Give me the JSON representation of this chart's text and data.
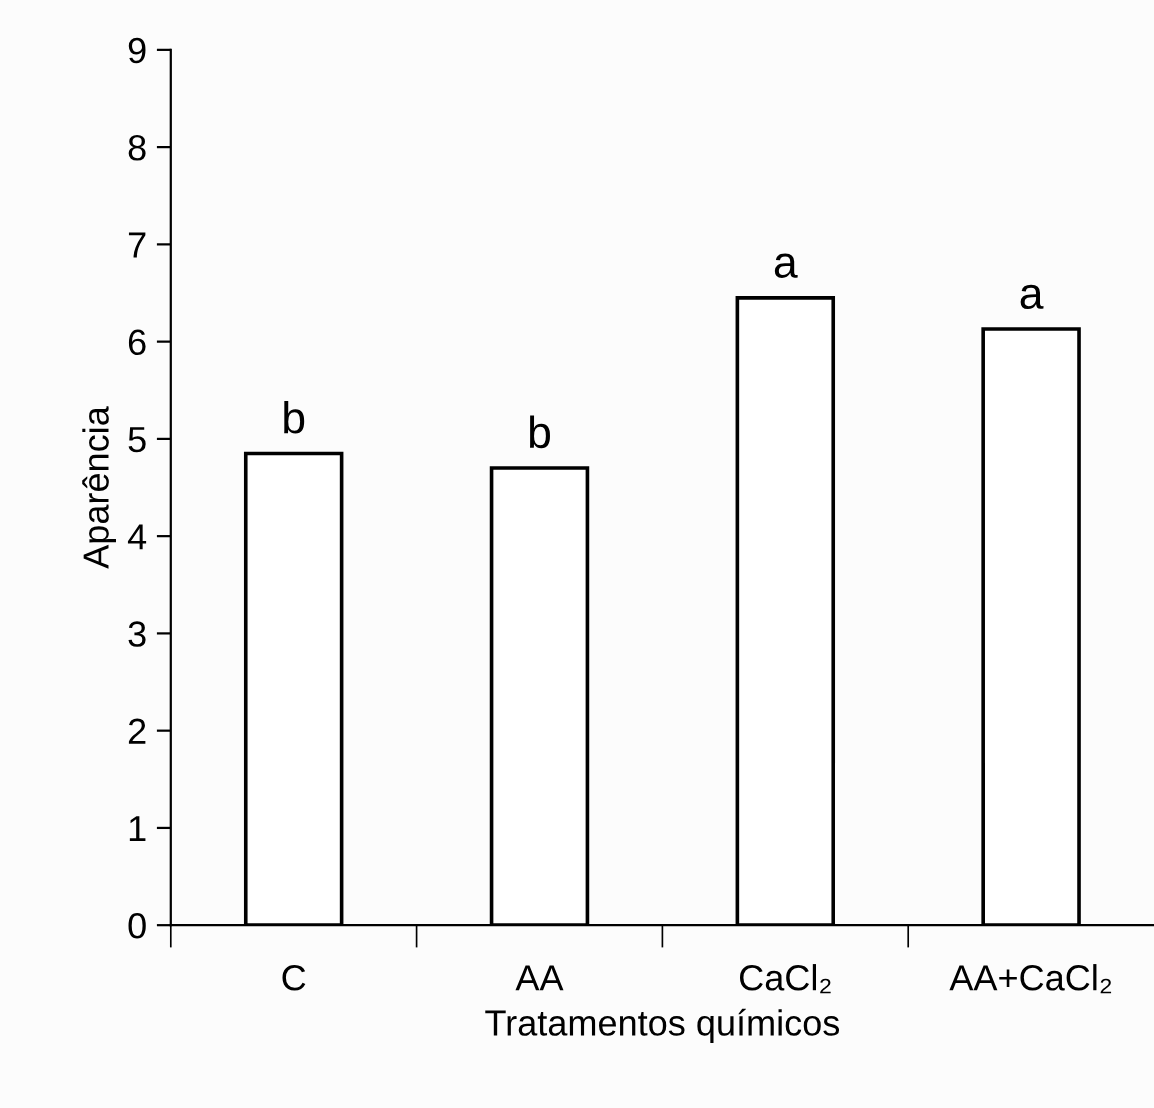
{
  "chart_data": {
    "type": "bar",
    "xlabel": "Tratamentos químicos",
    "ylabel": "Aparência",
    "categories": [
      "C",
      "AA",
      "CaCl₂",
      "AA+CaCl₂"
    ],
    "values": [
      4.85,
      4.7,
      6.45,
      6.13
    ],
    "color": "#ffffff",
    "ylim": [
      0,
      9
    ],
    "yticks": [
      0,
      1,
      2,
      3,
      4,
      5,
      6,
      7,
      8,
      9
    ],
    "grid": false,
    "legend": false,
    "annotations": [
      {
        "text": "b",
        "x": "C",
        "y": 4.85
      },
      {
        "text": "b",
        "x": "AA",
        "y": 4.7
      },
      {
        "text": "a",
        "x": "CaCl₂",
        "y": 6.45
      },
      {
        "text": "a",
        "x": "AA+CaCl₂",
        "y": 6.13
      }
    ]
  }
}
